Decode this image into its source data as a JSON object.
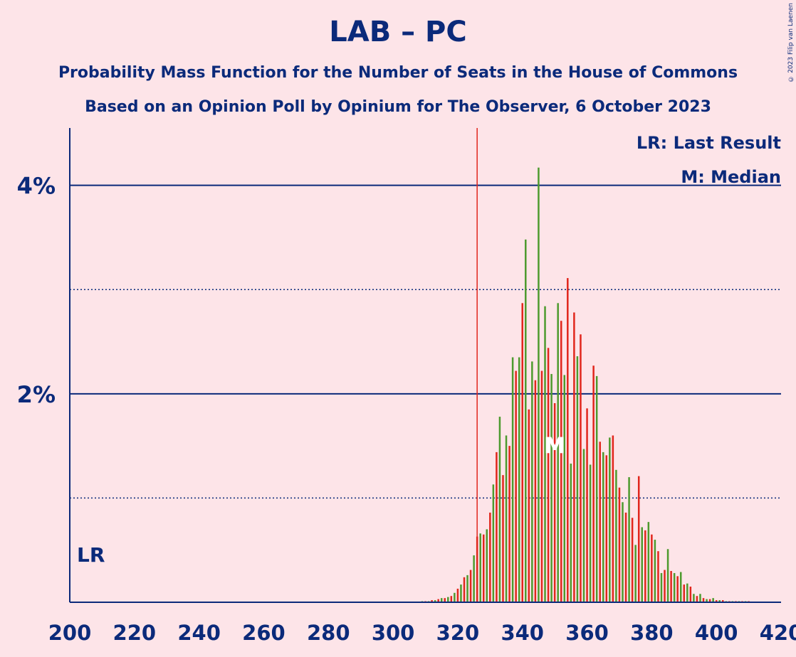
{
  "title": "LAB – PC",
  "subtitle1": "Probability Mass Function for the Number of Seats in the House of Commons",
  "subtitle2": "Based on an Opinion Poll by Opinium for The Observer, 6 October 2023",
  "copyright": "© 2023 Filip van Laenen",
  "legend": {
    "lr": "LR: Last Result",
    "median": "M: Median"
  },
  "markers": {
    "lr_label": "LR",
    "median_label": "M",
    "last_result_seat": 326,
    "median_seat": 350
  },
  "colors": {
    "background": "#fde4e8",
    "axis": "#0b2a7a",
    "red": "#e1261c",
    "green": "#4d9a2e"
  },
  "chart_data": {
    "type": "bar",
    "xlim": [
      200,
      420
    ],
    "ylim": [
      0,
      4.55
    ],
    "x_ticks": [
      "200",
      "220",
      "240",
      "260",
      "280",
      "300",
      "320",
      "340",
      "360",
      "380",
      "400",
      "420"
    ],
    "y_ticks": [
      "2%",
      "4%"
    ],
    "y_tick_values": [
      2,
      4
    ],
    "major_grid": [
      2,
      4
    ],
    "minor_grid": [
      1,
      3
    ],
    "x": [
      309,
      310,
      311,
      312,
      313,
      314,
      315,
      316,
      317,
      318,
      319,
      320,
      321,
      322,
      323,
      324,
      325,
      326,
      327,
      328,
      329,
      330,
      331,
      332,
      333,
      334,
      335,
      336,
      337,
      338,
      339,
      340,
      341,
      342,
      343,
      344,
      345,
      346,
      347,
      348,
      349,
      350,
      351,
      352,
      353,
      354,
      355,
      356,
      357,
      358,
      359,
      360,
      361,
      362,
      363,
      364,
      365,
      366,
      367,
      368,
      369,
      370,
      371,
      372,
      373,
      374,
      375,
      376,
      377,
      378,
      379,
      380,
      381,
      382,
      383,
      384,
      385,
      386,
      387,
      388,
      389,
      390,
      391,
      392,
      393,
      394,
      395,
      396,
      397,
      398,
      399,
      400,
      401,
      402,
      403,
      404,
      405,
      406,
      407,
      408,
      409,
      410
    ],
    "values": [
      0.01,
      0.01,
      0.01,
      0.02,
      0.02,
      0.03,
      0.04,
      0.04,
      0.05,
      0.06,
      0.09,
      0.13,
      0.17,
      0.24,
      0.26,
      0.31,
      0.45,
      0.63,
      0.66,
      0.65,
      0.7,
      0.86,
      1.13,
      1.44,
      1.78,
      1.22,
      1.6,
      1.5,
      2.35,
      2.22,
      2.35,
      2.87,
      3.48,
      1.85,
      2.31,
      2.13,
      4.17,
      2.22,
      2.84,
      2.44,
      2.19,
      1.91,
      2.87,
      2.7,
      2.18,
      3.11,
      1.33,
      2.78,
      2.36,
      2.57,
      1.47,
      1.86,
      1.32,
      2.27,
      2.17,
      1.54,
      1.44,
      1.41,
      1.58,
      1.6,
      1.27,
      1.1,
      0.96,
      0.86,
      1.2,
      0.81,
      0.55,
      1.21,
      0.72,
      0.69,
      0.77,
      0.65,
      0.6,
      0.49,
      0.28,
      0.31,
      0.51,
      0.3,
      0.28,
      0.25,
      0.29,
      0.17,
      0.18,
      0.15,
      0.08,
      0.06,
      0.08,
      0.04,
      0.03,
      0.03,
      0.04,
      0.02,
      0.02,
      0.02,
      0.01,
      0.01,
      0.01,
      0.01,
      0.01,
      0.01,
      0.01,
      0.01
    ]
  }
}
